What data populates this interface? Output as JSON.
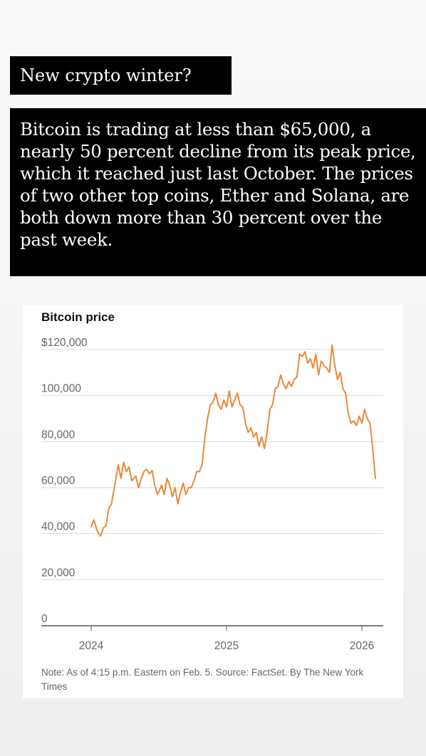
{
  "headline": "New crypto winter?",
  "body_text": "Bitcoin is trading at less than $65,000, a nearly 50 percent decline from its peak price, which it reached just last October. The prices of two other top coins, Ether and Solana, are both down more than 30 percent over the past week.",
  "note": "Note: As of 4:15 p.m. Eastern on Feb. 5. Source: FactSet. By The New York Times",
  "colors": {
    "line": "#e8893a",
    "grid": "#d9d9d9",
    "text": "#666666",
    "title": "#111111"
  },
  "chart_data": {
    "type": "line",
    "title": "Bitcoin price",
    "xlabel": "",
    "ylabel": "",
    "ylim": [
      0,
      120000
    ],
    "xlim": [
      2023.96,
      2026.13
    ],
    "y_ticks": [
      0,
      20000,
      40000,
      60000,
      80000,
      100000,
      120000
    ],
    "y_tick_labels": [
      "0",
      "20,000",
      "40,000",
      "60,000",
      "80,000",
      "100,000",
      "$120,000"
    ],
    "x_ticks": [
      2024,
      2025,
      2026
    ],
    "x_tick_labels": [
      "2024",
      "2025",
      "2026"
    ],
    "grid": "horizontal",
    "series": [
      {
        "values": [
          [
            2024.0,
            43000
          ],
          [
            2024.02,
            46000
          ],
          [
            2024.04,
            42000
          ],
          [
            2024.05,
            40500
          ],
          [
            2024.07,
            39000
          ],
          [
            2024.09,
            42500
          ],
          [
            2024.11,
            43500
          ],
          [
            2024.13,
            51000
          ],
          [
            2024.15,
            53000
          ],
          [
            2024.18,
            63000
          ],
          [
            2024.2,
            70000
          ],
          [
            2024.22,
            64000
          ],
          [
            2024.24,
            71000
          ],
          [
            2024.26,
            67000
          ],
          [
            2024.28,
            69000
          ],
          [
            2024.3,
            63000
          ],
          [
            2024.33,
            65000
          ],
          [
            2024.35,
            60000
          ],
          [
            2024.37,
            64000
          ],
          [
            2024.39,
            67000
          ],
          [
            2024.41,
            68000
          ],
          [
            2024.43,
            66000
          ],
          [
            2024.45,
            67500
          ],
          [
            2024.47,
            61000
          ],
          [
            2024.49,
            57000
          ],
          [
            2024.52,
            61000
          ],
          [
            2024.54,
            57000
          ],
          [
            2024.56,
            64000
          ],
          [
            2024.58,
            61000
          ],
          [
            2024.6,
            56000
          ],
          [
            2024.62,
            60000
          ],
          [
            2024.64,
            53000
          ],
          [
            2024.66,
            58000
          ],
          [
            2024.68,
            62000
          ],
          [
            2024.7,
            57000
          ],
          [
            2024.72,
            60000
          ],
          [
            2024.74,
            60000
          ],
          [
            2024.76,
            63000
          ],
          [
            2024.78,
            67000
          ],
          [
            2024.8,
            67000
          ],
          [
            2024.82,
            70000
          ],
          [
            2024.84,
            82000
          ],
          [
            2024.86,
            90000
          ],
          [
            2024.88,
            96000
          ],
          [
            2024.9,
            97000
          ],
          [
            2024.92,
            101000
          ],
          [
            2024.94,
            96000
          ],
          [
            2024.96,
            94000
          ],
          [
            2024.98,
            98000
          ],
          [
            2025.0,
            95000
          ],
          [
            2025.02,
            102000
          ],
          [
            2025.04,
            95000
          ],
          [
            2025.06,
            98000
          ],
          [
            2025.08,
            101000
          ],
          [
            2025.1,
            96000
          ],
          [
            2025.12,
            95000
          ],
          [
            2025.14,
            88000
          ],
          [
            2025.16,
            84000
          ],
          [
            2025.18,
            86000
          ],
          [
            2025.2,
            82000
          ],
          [
            2025.22,
            84000
          ],
          [
            2025.24,
            78000
          ],
          [
            2025.26,
            82000
          ],
          [
            2025.28,
            77000
          ],
          [
            2025.3,
            84000
          ],
          [
            2025.32,
            94000
          ],
          [
            2025.34,
            96000
          ],
          [
            2025.36,
            103000
          ],
          [
            2025.38,
            104000
          ],
          [
            2025.4,
            109000
          ],
          [
            2025.42,
            105000
          ],
          [
            2025.44,
            103000
          ],
          [
            2025.46,
            106000
          ],
          [
            2025.48,
            104000
          ],
          [
            2025.5,
            107000
          ],
          [
            2025.52,
            108000
          ],
          [
            2025.54,
            118000
          ],
          [
            2025.56,
            117000
          ],
          [
            2025.58,
            119000
          ],
          [
            2025.6,
            114000
          ],
          [
            2025.62,
            116000
          ],
          [
            2025.64,
            112000
          ],
          [
            2025.66,
            118000
          ],
          [
            2025.68,
            109000
          ],
          [
            2025.7,
            115000
          ],
          [
            2025.72,
            113000
          ],
          [
            2025.74,
            112000
          ],
          [
            2025.76,
            110000
          ],
          [
            2025.78,
            122000
          ],
          [
            2025.8,
            113000
          ],
          [
            2025.82,
            107000
          ],
          [
            2025.84,
            110000
          ],
          [
            2025.86,
            103000
          ],
          [
            2025.88,
            101000
          ],
          [
            2025.9,
            92000
          ],
          [
            2025.92,
            88000
          ],
          [
            2025.94,
            89000
          ],
          [
            2025.96,
            87000
          ],
          [
            2025.98,
            91000
          ],
          [
            2026.0,
            88000
          ],
          [
            2026.02,
            94000
          ],
          [
            2026.04,
            90000
          ],
          [
            2026.06,
            88000
          ],
          [
            2026.08,
            77000
          ],
          [
            2026.1,
            64000
          ]
        ]
      }
    ]
  }
}
